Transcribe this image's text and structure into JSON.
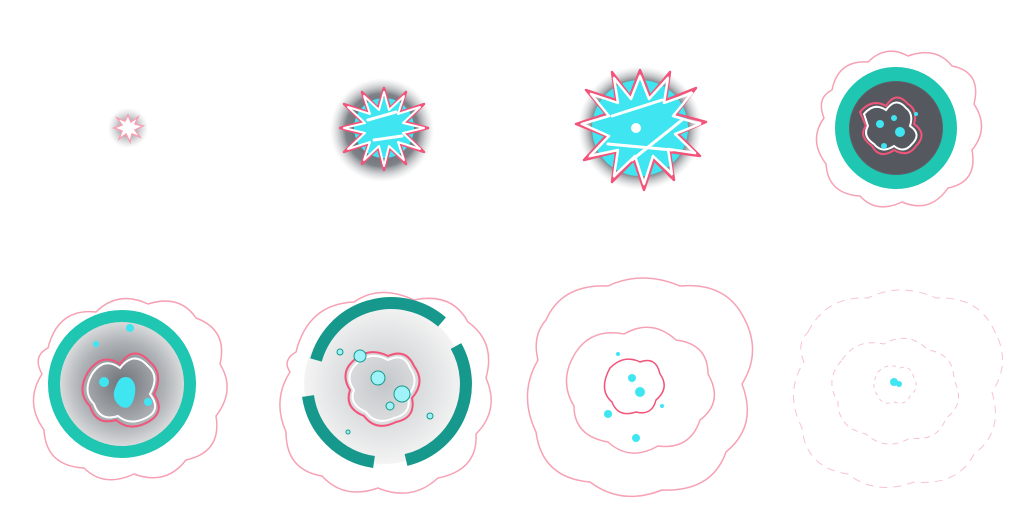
{
  "sprite_sheet": {
    "description_type": "explosion-animation-frames",
    "rows": 2,
    "columns": 4,
    "colors": {
      "cyan": "#3fe6f2",
      "cyan_light": "#9ff3f8",
      "teal_ring": "#1fc6b2",
      "teal_dark": "#16998c",
      "smoke_dark": "#5c6066",
      "smoke_mid": "#9ea2a8",
      "electric_pink": "#f2547a",
      "electric_pink_soft": "#f6a2b4",
      "white": "#ffffff"
    },
    "frames": [
      {
        "name": "frame-1",
        "icon": "spark-burst-icon",
        "stage": "ignite"
      },
      {
        "name": "frame-2",
        "icon": "energy-core-icon",
        "stage": "charge"
      },
      {
        "name": "frame-3",
        "icon": "energy-core-icon",
        "stage": "flash"
      },
      {
        "name": "frame-4",
        "icon": "shockwave-ring-icon",
        "stage": "blast"
      },
      {
        "name": "frame-5",
        "icon": "shockwave-ring-icon",
        "stage": "expand"
      },
      {
        "name": "frame-6",
        "icon": "broken-ring-icon",
        "stage": "break"
      },
      {
        "name": "frame-7",
        "icon": "dissipating-arcs-icon",
        "stage": "fade"
      },
      {
        "name": "frame-8",
        "icon": "faint-arcs-icon",
        "stage": "vanish"
      }
    ]
  }
}
